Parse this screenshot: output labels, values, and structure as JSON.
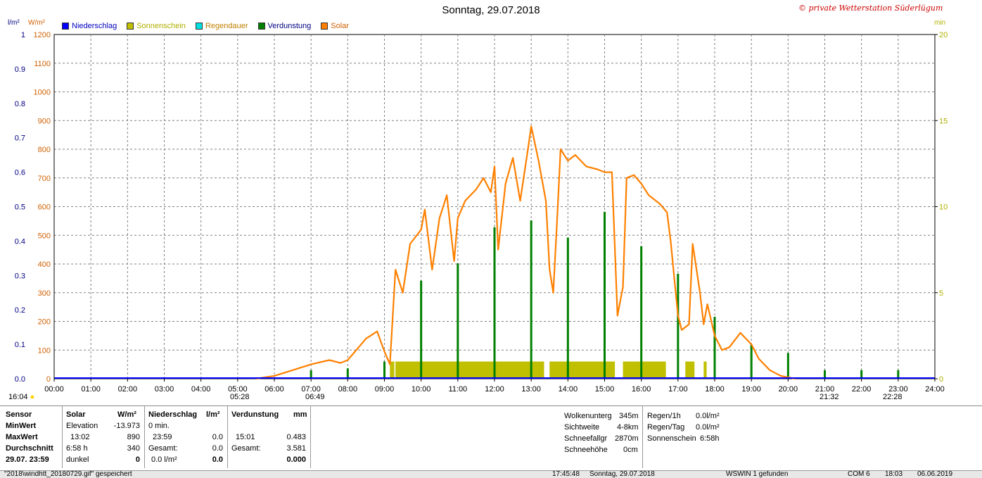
{
  "title": "Sonntag, 29.07.2018",
  "brand": "© private Wetterstation Süderlügum",
  "legend": [
    {
      "label": "Niederschlag",
      "color": "#0000ff",
      "text_color": "#0000c0"
    },
    {
      "label": "Sonnenschein",
      "color": "#c0c000",
      "text_color": "#b0b000"
    },
    {
      "label": "Regendauer",
      "color": "#00e0e0",
      "text_color": "#c08000"
    },
    {
      "label": "Verdunstung",
      "color": "#008000",
      "text_color": "#000080"
    },
    {
      "label": "Solar",
      "color": "#ff8000",
      "text_color": "#d06000"
    }
  ],
  "axis_units": {
    "left1": "l/m²",
    "left2": "W/m²",
    "right": "min"
  },
  "colors": {
    "precip": "#0000ff",
    "sunshine": "#c0c000",
    "evap": "#008000",
    "solar": "#ff8000",
    "grid": "#808080"
  },
  "time_markers": {
    "left_time": "16:04",
    "sunrise": "05:28",
    "civil": "06:49",
    "sunset": "21:32",
    "late": "22:28"
  },
  "chart_data": {
    "type": "line",
    "x_label_ticks": [
      "00:00",
      "01:00",
      "02:00",
      "03:00",
      "04:00",
      "05:00",
      "06:00",
      "07:00",
      "08:00",
      "09:00",
      "10:00",
      "11:00",
      "12:00",
      "13:00",
      "14:00",
      "15:00",
      "16:00",
      "17:00",
      "18:00",
      "19:00",
      "20:00",
      "21:00",
      "22:00",
      "23:00",
      "24:00"
    ],
    "y_left_precip_ticks": [
      "0.0",
      "0.1",
      "0.2",
      "0.3",
      "0.4",
      "0.5",
      "0.6",
      "0.7",
      "0.8",
      "0.9",
      "1"
    ],
    "y_left_solar_ticks": [
      "0",
      "100",
      "200",
      "300",
      "400",
      "500",
      "600",
      "700",
      "800",
      "900",
      "1000",
      "1100",
      "1200"
    ],
    "y_right_ticks": [
      "0",
      "5",
      "10",
      "15",
      "20"
    ],
    "ylim_solar": [
      0,
      1200
    ],
    "ylim_precip": [
      0,
      1
    ],
    "ylim_minutes": [
      0,
      20
    ],
    "grid": true,
    "series": [
      {
        "name": "Solar",
        "axis": "W/m²",
        "points": [
          [
            5.5,
            0
          ],
          [
            6.0,
            10
          ],
          [
            6.5,
            30
          ],
          [
            7.0,
            50
          ],
          [
            7.5,
            65
          ],
          [
            7.8,
            55
          ],
          [
            8.0,
            65
          ],
          [
            8.3,
            110
          ],
          [
            8.5,
            140
          ],
          [
            8.8,
            165
          ],
          [
            9.0,
            95
          ],
          [
            9.15,
            50
          ],
          [
            9.3,
            380
          ],
          [
            9.5,
            300
          ],
          [
            9.7,
            470
          ],
          [
            10.0,
            520
          ],
          [
            10.1,
            590
          ],
          [
            10.3,
            380
          ],
          [
            10.5,
            560
          ],
          [
            10.7,
            640
          ],
          [
            10.9,
            410
          ],
          [
            11.0,
            560
          ],
          [
            11.2,
            620
          ],
          [
            11.5,
            660
          ],
          [
            11.7,
            700
          ],
          [
            11.9,
            650
          ],
          [
            12.0,
            740
          ],
          [
            12.1,
            450
          ],
          [
            12.3,
            680
          ],
          [
            12.5,
            770
          ],
          [
            12.7,
            620
          ],
          [
            12.9,
            790
          ],
          [
            13.0,
            880
          ],
          [
            13.2,
            760
          ],
          [
            13.4,
            620
          ],
          [
            13.5,
            380
          ],
          [
            13.6,
            300
          ],
          [
            13.7,
            540
          ],
          [
            13.8,
            800
          ],
          [
            14.0,
            760
          ],
          [
            14.2,
            780
          ],
          [
            14.5,
            740
          ],
          [
            14.8,
            730
          ],
          [
            15.0,
            720
          ],
          [
            15.2,
            720
          ],
          [
            15.35,
            220
          ],
          [
            15.5,
            320
          ],
          [
            15.6,
            700
          ],
          [
            15.8,
            710
          ],
          [
            16.0,
            680
          ],
          [
            16.2,
            640
          ],
          [
            16.5,
            610
          ],
          [
            16.7,
            580
          ],
          [
            16.8,
            480
          ],
          [
            17.0,
            220
          ],
          [
            17.1,
            170
          ],
          [
            17.3,
            190
          ],
          [
            17.4,
            470
          ],
          [
            17.6,
            300
          ],
          [
            17.7,
            190
          ],
          [
            17.8,
            260
          ],
          [
            18.0,
            150
          ],
          [
            18.2,
            100
          ],
          [
            18.4,
            110
          ],
          [
            18.7,
            160
          ],
          [
            19.0,
            120
          ],
          [
            19.2,
            70
          ],
          [
            19.5,
            30
          ],
          [
            19.8,
            10
          ],
          [
            20.0,
            5
          ],
          [
            20.2,
            0
          ]
        ]
      },
      {
        "name": "Verdunstung",
        "axis": "min",
        "bars": [
          [
            7.0,
            0.5
          ],
          [
            8.0,
            0.6
          ],
          [
            9.0,
            1.0
          ],
          [
            10.0,
            5.7
          ],
          [
            11.0,
            6.7
          ],
          [
            12.0,
            8.8
          ],
          [
            13.0,
            9.2
          ],
          [
            14.0,
            8.2
          ],
          [
            15.0,
            9.7
          ],
          [
            16.0,
            7.7
          ],
          [
            17.0,
            6.1
          ],
          [
            18.0,
            3.6
          ],
          [
            19.0,
            2.0
          ],
          [
            20.0,
            1.5
          ],
          [
            21.0,
            0.5
          ],
          [
            22.0,
            0.5
          ],
          [
            23.0,
            0.5
          ]
        ]
      },
      {
        "name": "Sonnenschein",
        "axis": "min",
        "spans": [
          [
            9.15,
            9.27
          ],
          [
            9.3,
            13.35
          ],
          [
            13.5,
            15.28
          ],
          [
            15.5,
            16.67
          ],
          [
            17.2,
            17.45
          ],
          [
            17.7,
            17.78
          ]
        ],
        "value": 1.0
      }
    ]
  },
  "info_panel": {
    "sensor": {
      "header": "Sensor",
      "rows": [
        "MinWert",
        "MaxWert",
        "Durchschnitt",
        "29.07.  23:59"
      ]
    },
    "solar": {
      "header": "Solar",
      "unit": "W/m²",
      "rows": [
        [
          "Elevation",
          "-13.973"
        ],
        [
          "13:02",
          "890"
        ],
        [
          "6:58 h",
          "340"
        ],
        [
          "dunkel",
          "0"
        ]
      ]
    },
    "niederschlag": {
      "header": "Niederschlag",
      "unit": "l/m²",
      "rows": [
        [
          "0 min.",
          ""
        ],
        [
          "23:59",
          "0.0"
        ],
        [
          "Gesamt:",
          "0.0"
        ],
        [
          "0.0 l/m²",
          "0.0"
        ]
      ]
    },
    "verdunstung": {
      "header": "Verdunstung",
      "unit": "mm",
      "rows": [
        [
          "",
          ""
        ],
        [
          "15:01",
          "0.483"
        ],
        [
          "Gesamt:",
          "3.581"
        ],
        [
          "",
          "0.000"
        ]
      ]
    },
    "weather": [
      [
        "Wolkenunterg",
        "345m"
      ],
      [
        "Sichtweite",
        "4-8km"
      ],
      [
        "Schneefallgr",
        "2870m"
      ],
      [
        "Schneehöhe",
        "0cm"
      ]
    ],
    "rain": [
      [
        "Regen/1h",
        "0.0l/m²"
      ],
      [
        "Regen/Tag",
        "0.0l/m²"
      ],
      [
        "Sonnenschein",
        "6:58h"
      ]
    ]
  },
  "statusbar": {
    "file": "\"2018\\windhtt_20180729.gif\"  gespeichert",
    "time": "17:45:48",
    "date": "Sonntag, 29.07.2018",
    "device": "WSWIN 1 gefunden",
    "port": "COM 6",
    "clock": "18:03",
    "today": "06.06.2019"
  }
}
